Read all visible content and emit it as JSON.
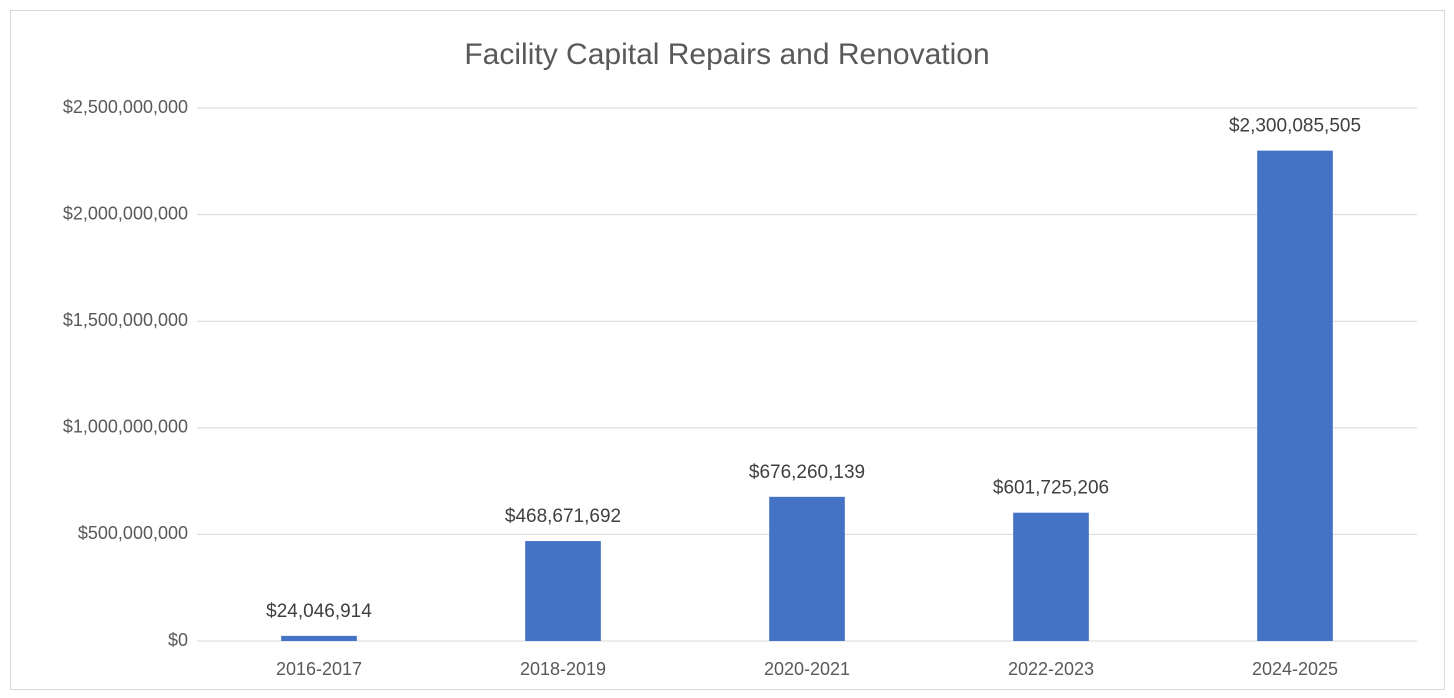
{
  "chart_data": {
    "type": "bar",
    "title": "Facility Capital Repairs and Renovation",
    "categories": [
      "2016-2017",
      "2018-2019",
      "2020-2021",
      "2022-2023",
      "2024-2025"
    ],
    "values": [
      24046914,
      468671692,
      676260139,
      601725206,
      2300085505
    ],
    "value_labels": [
      "$24,046,914",
      "$468,671,692",
      "$676,260,139",
      "$601,725,206",
      "$2,300,085,505"
    ],
    "color": "#4472c4",
    "ylim": [
      0,
      2500000000
    ],
    "yticks": [
      {
        "value": 0,
        "label": "$0"
      },
      {
        "value": 500000000,
        "label": "$500,000,000"
      },
      {
        "value": 1000000000,
        "label": "$1,000,000,000"
      },
      {
        "value": 1500000000,
        "label": "$1,500,000,000"
      },
      {
        "value": 2000000000,
        "label": "$2,000,000,000"
      },
      {
        "value": 2500000000,
        "label": "$2,500,000,000"
      }
    ],
    "grid": true
  }
}
